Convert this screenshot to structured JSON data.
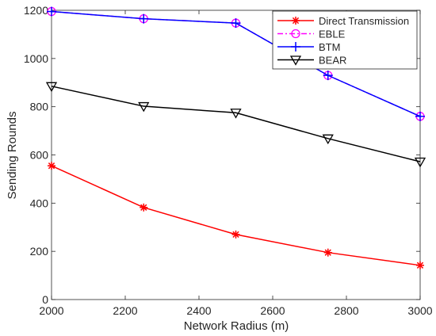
{
  "chart_data": {
    "type": "line",
    "title": "",
    "xlabel": "Network Radius (m)",
    "ylabel": "Sending Rounds",
    "xlim": [
      2000,
      3000
    ],
    "ylim": [
      0,
      1200
    ],
    "xticks": [
      2000,
      2200,
      2400,
      2600,
      2800,
      3000
    ],
    "yticks": [
      0,
      200,
      400,
      600,
      800,
      1000,
      1200
    ],
    "x": [
      2000,
      2250,
      2500,
      2750,
      3000
    ],
    "grid": false,
    "legend_position": "top-right",
    "series": [
      {
        "name": "Direct Transmission",
        "color": "#ff0000",
        "line": "solid",
        "marker": "asterisk",
        "values": [
          555,
          382,
          270,
          195,
          142
        ]
      },
      {
        "name": "EBLE",
        "color": "#ff00ff",
        "line": "dashdot",
        "marker": "circle",
        "values": [
          1195,
          1165,
          1147,
          930,
          760
        ]
      },
      {
        "name": "BTM",
        "color": "#0000ff",
        "line": "solid",
        "marker": "plus",
        "values": [
          1195,
          1165,
          1147,
          930,
          760
        ]
      },
      {
        "name": "BEAR",
        "color": "#000000",
        "line": "solid",
        "marker": "triangle-down",
        "values": [
          885,
          802,
          775,
          668,
          572
        ]
      }
    ]
  }
}
